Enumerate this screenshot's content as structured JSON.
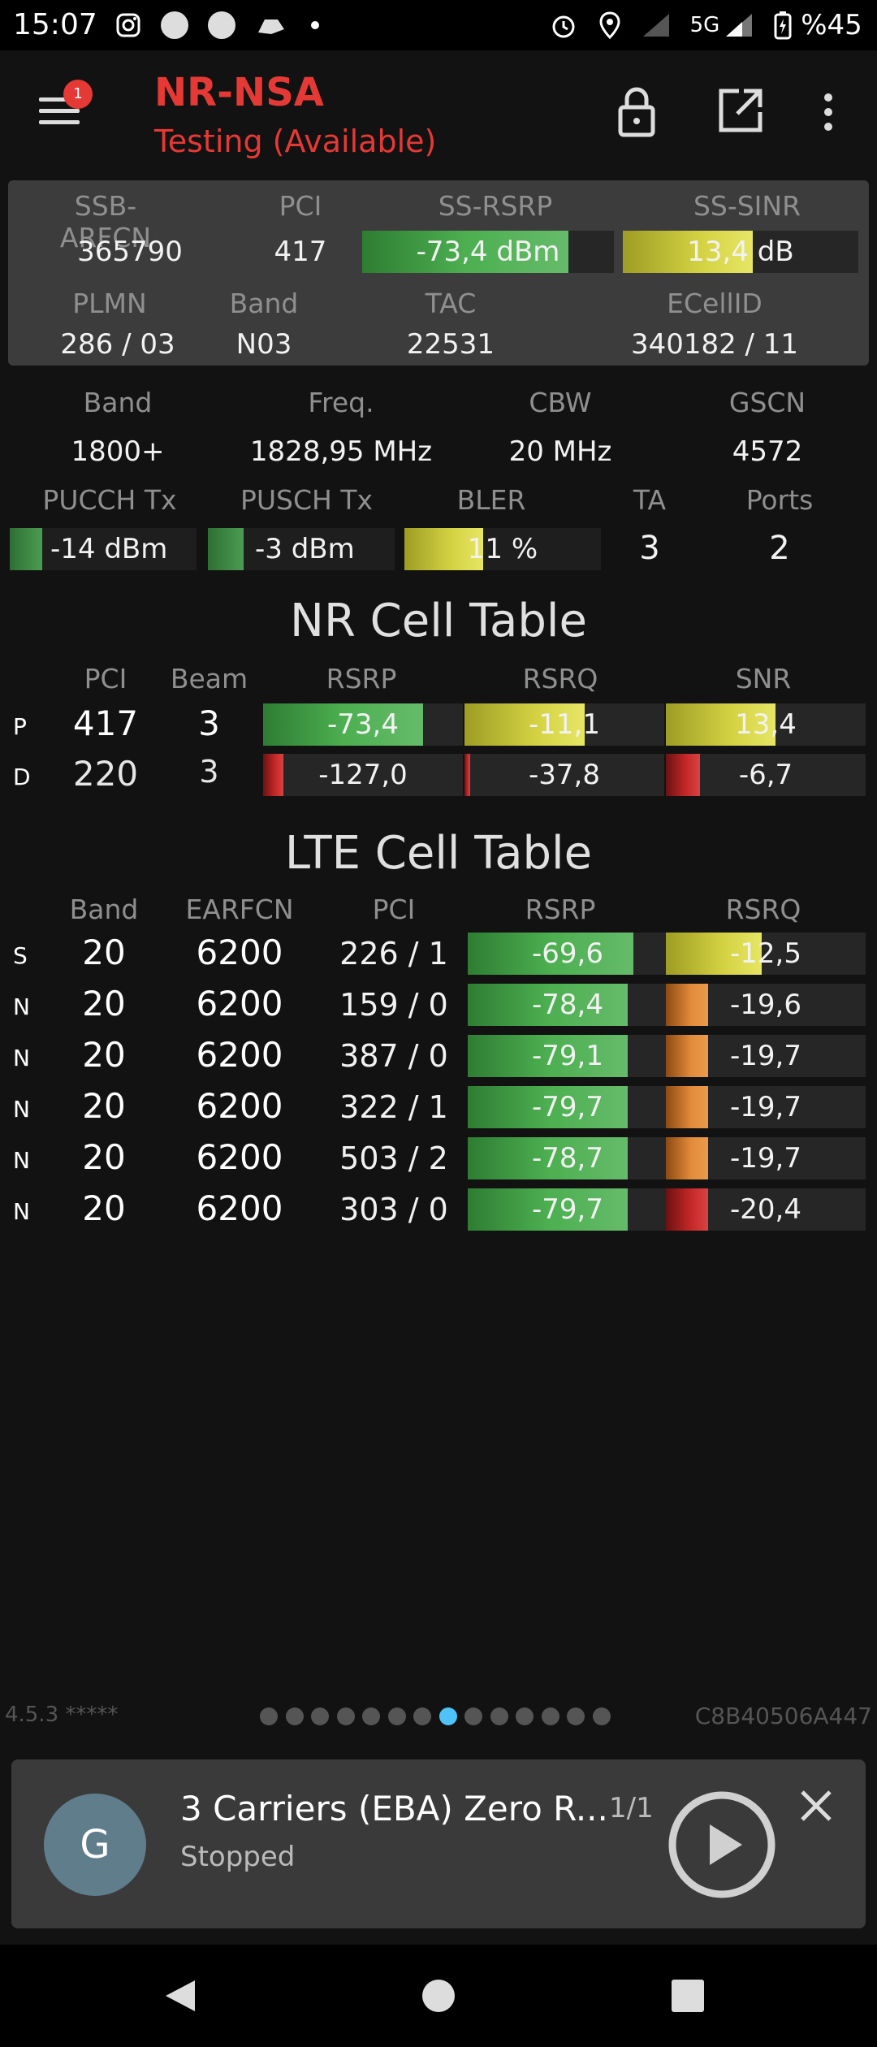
{
  "status_bar": {
    "time": "15:07",
    "network": "5G",
    "battery": "%45"
  },
  "app": {
    "menu_badge": "1",
    "title": "NR-NSA",
    "subtitle": "Testing (Available)"
  },
  "panel": {
    "labels": {
      "ssb_arfcn": "SSB-ARFCN",
      "pci": "PCI",
      "ss_rsrp": "SS-RSRP",
      "ss_sinr": "SS-SINR",
      "plmn": "PLMN",
      "band": "Band",
      "tac": "TAC",
      "ecellid": "ECellID"
    },
    "values": {
      "ssb_arfcn": "365790",
      "pci": "417",
      "ss_rsrp": "-73,4 dBm",
      "ss_rsrp_level": 0.82,
      "ss_sinr": "13,4 dB",
      "ss_sinr_level": 0.55,
      "plmn": "286 / 03",
      "band": "N03",
      "tac": "22531",
      "ecellid": "340182 / 11"
    }
  },
  "details": {
    "labels": {
      "band": "Band",
      "freq": "Freq.",
      "cbw": "CBW",
      "gscn": "GSCN",
      "pucch": "PUCCH Tx",
      "pusch": "PUSCH Tx",
      "bler": "BLER",
      "ta": "TA",
      "ports": "Ports"
    },
    "values": {
      "band": "1800+",
      "freq": "1828,95 MHz",
      "cbw": "20 MHz",
      "gscn": "4572",
      "pucch": "-14 dBm",
      "pusch": "-3 dBm",
      "bler": "11 %",
      "bler_level": 0.4,
      "ta": "3",
      "ports": "2"
    }
  },
  "nr_table": {
    "title": "NR Cell Table",
    "headers": [
      "PCI",
      "Beam",
      "RSRP",
      "RSRQ",
      "SNR"
    ],
    "rows": [
      {
        "flag": "P",
        "pci": "417",
        "beam": "3",
        "rsrp": "-73,4",
        "rsrp_level": 0.8,
        "rsrp_color": "green",
        "rsrq": "-11,1",
        "rsrq_level": 0.6,
        "rsrq_color": "yellow",
        "snr": "13,4",
        "snr_level": 0.55,
        "snr_color": "yellow"
      },
      {
        "flag": "D",
        "pci": "220",
        "beam": "3",
        "rsrp": "-127,0",
        "rsrp_level": 0.1,
        "rsrp_color": "red",
        "rsrq": "-37,8",
        "rsrq_level": 0.03,
        "rsrq_color": "red",
        "snr": "-6,7",
        "snr_level": 0.17,
        "snr_color": "red"
      }
    ]
  },
  "lte_table": {
    "title": "LTE Cell Table",
    "headers": [
      "Band",
      "EARFCN",
      "PCI",
      "RSRP",
      "RSRQ"
    ],
    "rows": [
      {
        "flag": "S",
        "band": "20",
        "earfcn": "6200",
        "pci": "226 / 1",
        "rsrp": "-69,6",
        "rsrp_level": 0.83,
        "rsrq": "-12,5",
        "rsrq_level": 0.48,
        "rsrq_color": "yellow"
      },
      {
        "flag": "N",
        "band": "20",
        "earfcn": "6200",
        "pci": "159 / 0",
        "rsrp": "-78,4",
        "rsrp_level": 0.8,
        "rsrq": "-19,6",
        "rsrq_level": 0.21,
        "rsrq_color": "orange"
      },
      {
        "flag": "N",
        "band": "20",
        "earfcn": "6200",
        "pci": "387 / 0",
        "rsrp": "-79,1",
        "rsrp_level": 0.8,
        "rsrq": "-19,7",
        "rsrq_level": 0.21,
        "rsrq_color": "orange"
      },
      {
        "flag": "N",
        "band": "20",
        "earfcn": "6200",
        "pci": "322 / 1",
        "rsrp": "-79,7",
        "rsrp_level": 0.8,
        "rsrq": "-19,7",
        "rsrq_level": 0.21,
        "rsrq_color": "orange"
      },
      {
        "flag": "N",
        "band": "20",
        "earfcn": "6200",
        "pci": "503 / 2",
        "rsrp": "-78,7",
        "rsrp_level": 0.8,
        "rsrq": "-19,7",
        "rsrq_level": 0.21,
        "rsrq_color": "orange"
      },
      {
        "flag": "N",
        "band": "20",
        "earfcn": "6200",
        "pci": "303 / 0",
        "rsrp": "-79,7",
        "rsrp_level": 0.8,
        "rsrq": "-20,4",
        "rsrq_level": 0.21,
        "rsrq_color": "red"
      }
    ]
  },
  "footer": {
    "version": "4.5.3 *****",
    "device_id": "C8B40506A447",
    "page_count": 14,
    "active_page": 8
  },
  "notification": {
    "avatar_letter": "G",
    "title": "3 Carriers (EBA) Zero R...",
    "counter": "1/1",
    "status": "Stopped"
  },
  "colors": {
    "accent": "#e53935",
    "green": "#4caf50",
    "yellow": "#d4d243",
    "orange": "#e38b3b",
    "red": "#c62828",
    "page_dot_active": "#4fc3f7"
  }
}
